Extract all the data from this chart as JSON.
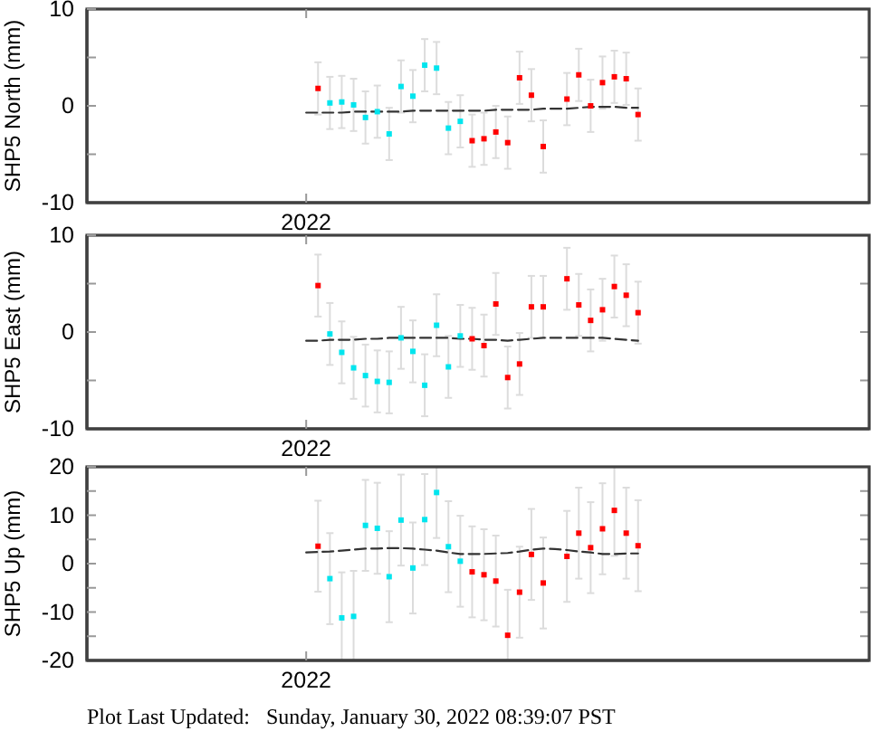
{
  "chart_data": [
    {
      "type": "scatter",
      "ylabel": "SHP5 North (mm)",
      "annotations": [
        "2022"
      ],
      "categories": [
        null,
        null,
        null,
        null,
        null,
        null,
        null,
        null,
        null,
        null,
        null,
        null,
        null,
        null,
        null,
        null,
        null,
        null,
        null,
        null,
        null,
        null,
        null,
        null,
        null,
        null,
        null,
        null,
        null,
        null,
        null,
        null,
        null,
        null,
        null,
        null,
        null,
        null,
        null,
        null,
        null,
        null,
        null,
        null,
        null,
        null,
        null,
        null,
        null,
        null,
        null,
        null,
        null,
        null,
        null,
        null,
        null,
        null,
        null,
        null,
        null,
        null,
        null,
        null,
        null,
        null
      ],
      "ylim": [
        -10,
        10
      ],
      "yticks": [
        -10,
        {
          "value": -5,
          "label": null
        },
        0,
        {
          "value": 5,
          "label": null
        },
        10
      ],
      "marker": "square",
      "series": [
        {
          "color": "#ff0000",
          "values": [
            null,
            null,
            null,
            null,
            null,
            null,
            null,
            null,
            null,
            null,
            null,
            null,
            null,
            null,
            null,
            null,
            null,
            null,
            null,
            1.8,
            null,
            null,
            null,
            null,
            null,
            null,
            null,
            null,
            null,
            null,
            null,
            null,
            -3.6,
            -3.4,
            -2.7,
            -3.8,
            2.9,
            1.1,
            -4.2,
            null,
            0.7,
            3.2,
            0.0,
            2.4,
            3.0,
            2.8,
            -0.9,
            null,
            null,
            null,
            null,
            null,
            null,
            null,
            null,
            null,
            null,
            null,
            null,
            null,
            null,
            null,
            null,
            null,
            null,
            null
          ],
          "errors": [
            null,
            null,
            null,
            null,
            null,
            null,
            null,
            null,
            null,
            null,
            null,
            null,
            null,
            null,
            null,
            null,
            null,
            null,
            null,
            2.7,
            null,
            null,
            null,
            null,
            null,
            null,
            null,
            null,
            null,
            null,
            null,
            null,
            2.7,
            2.7,
            2.7,
            2.7,
            2.7,
            2.7,
            2.7,
            null,
            2.7,
            2.7,
            2.7,
            2.7,
            2.7,
            2.7,
            2.7,
            null,
            null,
            null,
            null,
            null,
            null,
            null,
            null,
            null,
            null,
            null,
            null,
            null,
            null,
            null,
            null,
            null,
            null,
            null
          ]
        },
        {
          "color": "#00e5ee",
          "values": [
            null,
            null,
            null,
            null,
            null,
            null,
            null,
            null,
            null,
            null,
            null,
            null,
            null,
            null,
            null,
            null,
            null,
            null,
            null,
            null,
            0.3,
            0.4,
            0.1,
            -1.2,
            -0.6,
            -2.9,
            2.0,
            1.0,
            4.2,
            3.9,
            -2.3,
            -1.6,
            null,
            null,
            null,
            null,
            null,
            null,
            null,
            null,
            null,
            null,
            null,
            null,
            null,
            null,
            null,
            null,
            null,
            null,
            null,
            null,
            null,
            null,
            null,
            null,
            null,
            null,
            null,
            null,
            null,
            null,
            null,
            null,
            null,
            null
          ],
          "errors": [
            null,
            null,
            null,
            null,
            null,
            null,
            null,
            null,
            null,
            null,
            null,
            null,
            null,
            null,
            null,
            null,
            null,
            null,
            null,
            null,
            2.7,
            2.7,
            2.7,
            2.7,
            2.7,
            2.7,
            2.7,
            2.7,
            2.7,
            2.7,
            2.7,
            2.7,
            null,
            null,
            null,
            null,
            null,
            null,
            null,
            null,
            null,
            null,
            null,
            null,
            null,
            null,
            null,
            null,
            null,
            null,
            null,
            null,
            null,
            null,
            null,
            null,
            null,
            null,
            null,
            null,
            null,
            null,
            null,
            null,
            null,
            null
          ]
        },
        {
          "type": "line",
          "color": "#333333",
          "line_style": "dashed",
          "marker": "none",
          "values": [
            null,
            null,
            null,
            null,
            null,
            null,
            null,
            null,
            null,
            null,
            null,
            null,
            null,
            null,
            null,
            null,
            null,
            null,
            -0.7,
            -0.7,
            -0.7,
            -0.7,
            -0.6,
            -0.6,
            -0.6,
            -0.6,
            -0.6,
            -0.5,
            -0.5,
            -0.5,
            -0.5,
            -0.5,
            -0.5,
            -0.5,
            -0.4,
            -0.4,
            -0.4,
            -0.4,
            -0.3,
            -0.3,
            -0.3,
            -0.2,
            -0.1,
            -0.1,
            -0.1,
            -0.2,
            -0.2,
            null,
            null,
            null,
            null,
            null,
            null,
            null,
            null,
            null,
            null,
            null,
            null,
            null,
            null,
            null,
            null,
            null,
            null,
            null
          ]
        }
      ]
    },
    {
      "type": "scatter",
      "ylabel": "SHP5 East (mm)",
      "annotations": [
        "2022"
      ],
      "categories": [
        null,
        null,
        null,
        null,
        null,
        null,
        null,
        null,
        null,
        null,
        null,
        null,
        null,
        null,
        null,
        null,
        null,
        null,
        null,
        null,
        null,
        null,
        null,
        null,
        null,
        null,
        null,
        null,
        null,
        null,
        null,
        null,
        null,
        null,
        null,
        null,
        null,
        null,
        null,
        null,
        null,
        null,
        null,
        null,
        null,
        null,
        null,
        null,
        null,
        null,
        null,
        null,
        null,
        null,
        null,
        null,
        null,
        null,
        null,
        null,
        null,
        null,
        null,
        null,
        null,
        null
      ],
      "ylim": [
        -10,
        10
      ],
      "yticks": [
        -10,
        {
          "value": -5,
          "label": null
        },
        0,
        {
          "value": 5,
          "label": null
        },
        10
      ],
      "marker": "square",
      "series": [
        {
          "color": "#ff0000",
          "values": [
            null,
            null,
            null,
            null,
            null,
            null,
            null,
            null,
            null,
            null,
            null,
            null,
            null,
            null,
            null,
            null,
            null,
            null,
            null,
            4.8,
            null,
            null,
            null,
            null,
            null,
            null,
            null,
            null,
            null,
            null,
            null,
            null,
            -0.7,
            -1.4,
            2.9,
            -4.7,
            -3.3,
            2.6,
            2.6,
            null,
            5.5,
            2.8,
            1.2,
            2.3,
            4.7,
            3.8,
            2.0,
            null,
            null,
            null,
            null,
            null,
            null,
            null,
            null,
            null,
            null,
            null,
            null,
            null,
            null,
            null,
            null,
            null,
            null,
            null
          ],
          "errors": [
            null,
            null,
            null,
            null,
            null,
            null,
            null,
            null,
            null,
            null,
            null,
            null,
            null,
            null,
            null,
            null,
            null,
            null,
            null,
            3.2,
            null,
            null,
            null,
            null,
            null,
            null,
            null,
            null,
            null,
            null,
            null,
            null,
            3.2,
            3.2,
            3.2,
            3.2,
            3.2,
            3.2,
            3.2,
            null,
            3.2,
            3.2,
            3.2,
            3.2,
            3.2,
            3.2,
            3.2,
            null,
            null,
            null,
            null,
            null,
            null,
            null,
            null,
            null,
            null,
            null,
            null,
            null,
            null,
            null,
            null,
            null,
            null,
            null
          ]
        },
        {
          "color": "#00e5ee",
          "values": [
            null,
            null,
            null,
            null,
            null,
            null,
            null,
            null,
            null,
            null,
            null,
            null,
            null,
            null,
            null,
            null,
            null,
            null,
            null,
            null,
            -0.2,
            -2.1,
            -3.7,
            -4.5,
            -5.1,
            -5.2,
            -0.6,
            -2.0,
            -5.5,
            0.7,
            -3.6,
            -0.4,
            null,
            null,
            null,
            null,
            null,
            null,
            null,
            null,
            null,
            null,
            null,
            null,
            null,
            null,
            null,
            null,
            null,
            null,
            null,
            null,
            null,
            null,
            null,
            null,
            null,
            null,
            null,
            null,
            null,
            null,
            null,
            null,
            null,
            null
          ],
          "errors": [
            null,
            null,
            null,
            null,
            null,
            null,
            null,
            null,
            null,
            null,
            null,
            null,
            null,
            null,
            null,
            null,
            null,
            null,
            null,
            null,
            3.2,
            3.2,
            3.2,
            3.2,
            3.2,
            3.2,
            3.2,
            3.2,
            3.2,
            3.2,
            3.2,
            3.2,
            null,
            null,
            null,
            null,
            null,
            null,
            null,
            null,
            null,
            null,
            null,
            null,
            null,
            null,
            null,
            null,
            null,
            null,
            null,
            null,
            null,
            null,
            null,
            null,
            null,
            null,
            null,
            null,
            null,
            null,
            null,
            null,
            null,
            null
          ]
        },
        {
          "type": "line",
          "color": "#333333",
          "line_style": "dashed",
          "marker": "none",
          "values": [
            null,
            null,
            null,
            null,
            null,
            null,
            null,
            null,
            null,
            null,
            null,
            null,
            null,
            null,
            null,
            null,
            null,
            null,
            -0.9,
            -0.9,
            -0.8,
            -0.8,
            -0.8,
            -0.7,
            -0.7,
            -0.6,
            -0.6,
            -0.6,
            -0.6,
            -0.6,
            -0.6,
            -0.7,
            -0.7,
            -0.8,
            -0.8,
            -0.9,
            -0.8,
            -0.7,
            -0.6,
            -0.6,
            -0.6,
            -0.6,
            -0.6,
            -0.6,
            -0.7,
            -0.8,
            -0.9,
            null,
            null,
            null,
            null,
            null,
            null,
            null,
            null,
            null,
            null,
            null,
            null,
            null,
            null,
            null,
            null,
            null,
            null,
            null
          ]
        }
      ]
    },
    {
      "type": "scatter",
      "ylabel": "SHP5 Up (mm)",
      "annotations": [
        "2022",
        "Plot Last Updated:   Sunday, January 30, 2022 08:39:07 PST"
      ],
      "categories": [
        null,
        null,
        null,
        null,
        null,
        null,
        null,
        null,
        null,
        null,
        null,
        null,
        null,
        null,
        null,
        null,
        null,
        null,
        null,
        null,
        null,
        null,
        null,
        null,
        null,
        null,
        null,
        null,
        null,
        null,
        null,
        null,
        null,
        null,
        null,
        null,
        null,
        null,
        null,
        null,
        null,
        null,
        null,
        null,
        null,
        null,
        null,
        null,
        null,
        null,
        null,
        null,
        null,
        null,
        null,
        null,
        null,
        null,
        null,
        null,
        null,
        null,
        null,
        null,
        null,
        null
      ],
      "ylim": [
        -20,
        20
      ],
      "yticks": [
        -20,
        {
          "value": -15,
          "label": null
        },
        -10,
        {
          "value": -5,
          "label": null
        },
        0,
        {
          "value": 5,
          "label": null
        },
        10,
        {
          "value": 15,
          "label": null
        },
        20
      ],
      "marker": "square",
      "series": [
        {
          "color": "#ff0000",
          "values": [
            null,
            null,
            null,
            null,
            null,
            null,
            null,
            null,
            null,
            null,
            null,
            null,
            null,
            null,
            null,
            null,
            null,
            null,
            null,
            3.6,
            null,
            null,
            null,
            null,
            null,
            null,
            null,
            null,
            null,
            null,
            null,
            null,
            -1.7,
            -2.3,
            -3.6,
            -14.8,
            -5.9,
            1.9,
            -4.0,
            null,
            1.5,
            6.3,
            3.3,
            7.2,
            11.0,
            6.3,
            3.7,
            null,
            null,
            null,
            null,
            null,
            null,
            null,
            null,
            null,
            null,
            null,
            null,
            null,
            null,
            null,
            null,
            null,
            null,
            null
          ],
          "errors": [
            null,
            null,
            null,
            null,
            null,
            null,
            null,
            null,
            null,
            null,
            null,
            null,
            null,
            null,
            null,
            null,
            null,
            null,
            null,
            9.4,
            null,
            null,
            null,
            null,
            null,
            null,
            null,
            null,
            null,
            null,
            null,
            null,
            9.4,
            9.4,
            9.4,
            [
              -20,
              -5.4
            ],
            9.4,
            9.4,
            9.4,
            null,
            9.4,
            9.4,
            9.4,
            9.4,
            [
              1.6,
              20
            ],
            9.4,
            9.4,
            null,
            null,
            null,
            null,
            null,
            null,
            null,
            null,
            null,
            null,
            null,
            null,
            null,
            null,
            null,
            null,
            null,
            null,
            null
          ]
        },
        {
          "color": "#00e5ee",
          "values": [
            null,
            null,
            null,
            null,
            null,
            null,
            null,
            null,
            null,
            null,
            null,
            null,
            null,
            null,
            null,
            null,
            null,
            null,
            null,
            null,
            -3.1,
            -11.2,
            -10.9,
            7.9,
            7.3,
            -2.7,
            9.0,
            -0.9,
            9.1,
            14.7,
            3.5,
            0.5,
            null,
            null,
            null,
            null,
            null,
            null,
            null,
            null,
            null,
            null,
            null,
            null,
            null,
            null,
            null,
            null,
            null,
            null,
            null,
            null,
            null,
            null,
            null,
            null,
            null,
            null,
            null,
            null,
            null,
            null,
            null,
            null,
            null,
            null
          ],
          "errors": [
            null,
            null,
            null,
            null,
            null,
            null,
            null,
            null,
            null,
            null,
            null,
            null,
            null,
            null,
            null,
            null,
            null,
            null,
            null,
            null,
            9.4,
            [
              -20,
              -1.8
            ],
            [
              -20,
              -1.5
            ],
            9.4,
            9.4,
            9.4,
            9.4,
            9.4,
            9.4,
            [
              5.3,
              20
            ],
            9.4,
            9.4,
            null,
            null,
            null,
            null,
            null,
            null,
            null,
            null,
            null,
            null,
            null,
            null,
            null,
            null,
            null,
            null,
            null,
            null,
            null,
            null,
            null,
            null,
            null,
            null,
            null,
            null,
            null,
            null,
            null,
            null,
            null,
            null,
            null,
            null
          ]
        },
        {
          "type": "line",
          "color": "#333333",
          "line_style": "dashed",
          "marker": "none",
          "values": [
            null,
            null,
            null,
            null,
            null,
            null,
            null,
            null,
            null,
            null,
            null,
            null,
            null,
            null,
            null,
            null,
            null,
            null,
            2.3,
            2.4,
            2.5,
            2.7,
            2.9,
            3.1,
            3.1,
            3.2,
            3.2,
            3.1,
            2.9,
            2.7,
            2.3,
            2.0,
            2.0,
            2.0,
            2.1,
            2.2,
            2.5,
            2.9,
            3.1,
            3.0,
            2.8,
            2.5,
            2.3,
            2.0,
            2.0,
            2.1,
            2.1,
            null,
            null,
            null,
            null,
            null,
            null,
            null,
            null,
            null,
            null,
            null,
            null,
            null,
            null,
            null,
            null,
            null,
            null,
            null
          ]
        }
      ]
    }
  ]
}
